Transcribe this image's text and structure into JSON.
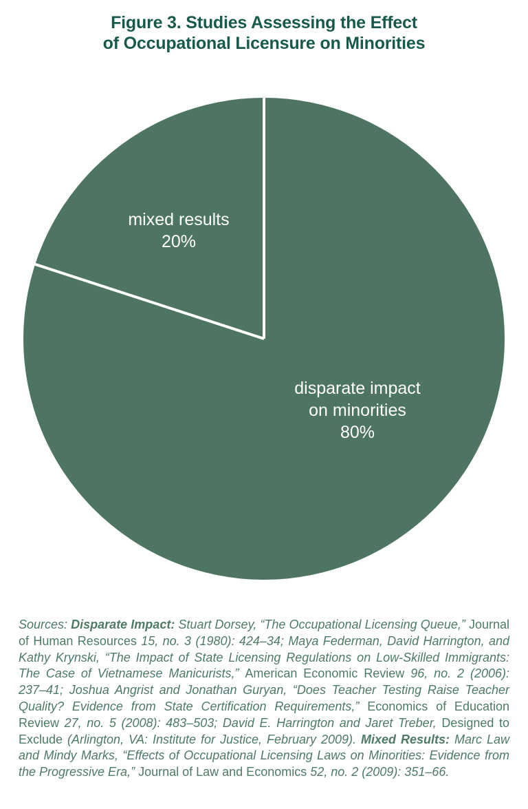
{
  "title": {
    "line1": "Figure 3. Studies Assessing the Effect",
    "line2": "of Occupational Licensure on Minorities"
  },
  "colors": {
    "title_green": "#175a4c",
    "pie_green": "#4d7562",
    "divider": "#ffffff",
    "label_white": "#ffffff",
    "source_green": "#4e7a66",
    "background": "#ffffff"
  },
  "chart_data": {
    "type": "pie",
    "title": "Figure 3. Studies Assessing the Effect of Occupational Licensure on Minorities",
    "slices": [
      {
        "label": "disparate impact on minorities",
        "value": 80
      },
      {
        "label": "mixed results",
        "value": 20
      }
    ],
    "units": "percent",
    "start_angle_deg": 90,
    "direction": "counterclockwise",
    "single_fill_color": "#4d7562",
    "divider_color": "#ffffff",
    "labels_inside": true,
    "legend_position": "none"
  },
  "pie_labels": {
    "mixed": {
      "line1": "mixed results",
      "line2": "20%"
    },
    "disparate": {
      "line1": "disparate impact",
      "line2": "on minorities",
      "line3": "80%"
    }
  },
  "sources": {
    "segments": [
      {
        "text": "Sources: ",
        "style": "italic"
      },
      {
        "text": "Disparate Impact: ",
        "style": "bold-italic"
      },
      {
        "text": "Stuart Dorsey, “The Occupational Licensing Queue,” ",
        "style": "italic"
      },
      {
        "text": "Journal of Human Resources ",
        "style": "roman"
      },
      {
        "text": "15, no. 3 (1980): 424–34; Maya Federman, David Harrington, and Kathy Krynski, “The Impact of State Licensing Regulations on Low-Skilled Immigrants: The Case of Vietnamese Manicurists,” ",
        "style": "italic"
      },
      {
        "text": "American Economic Review ",
        "style": "roman"
      },
      {
        "text": "96, no. 2 (2006): 237–41; Joshua Angrist and Jonathan Guryan, “Does Teacher Testing Raise Teacher Quality? Evidence from State Certification Requirements,” ",
        "style": "italic"
      },
      {
        "text": "Economics of Education Review ",
        "style": "roman"
      },
      {
        "text": "27, no. 5 (2008): 483–503; David E. Harrington and Jaret Treber, ",
        "style": "italic"
      },
      {
        "text": "Designed to Exclude ",
        "style": "roman"
      },
      {
        "text": "(Arlington, VA: Institute for Justice, February 2009). ",
        "style": "italic"
      },
      {
        "text": "Mixed Results: ",
        "style": "bold-italic"
      },
      {
        "text": "Marc Law and Mindy Marks, “Effects of Occupational Licensing Laws on Minorities: Evidence from the Progressive Era,” ",
        "style": "italic"
      },
      {
        "text": "Journal of Law and Economics ",
        "style": "roman"
      },
      {
        "text": "52, no. 2 (2009): 351–66.",
        "style": "italic"
      }
    ]
  }
}
